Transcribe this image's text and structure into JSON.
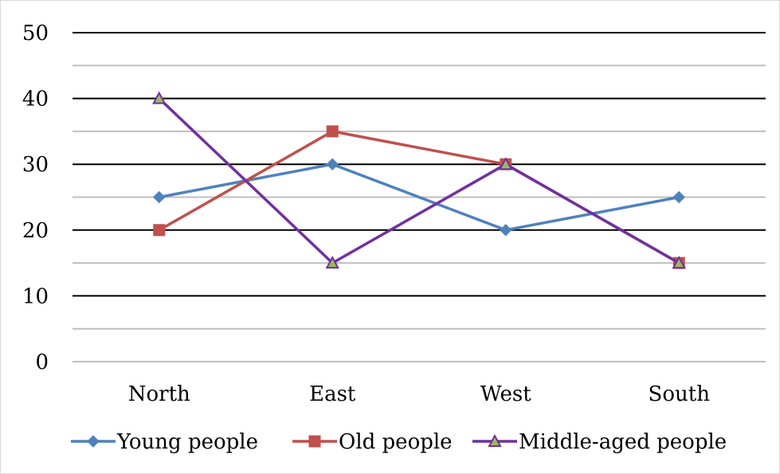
{
  "chart_data": {
    "type": "line",
    "title": "",
    "xlabel": "",
    "ylabel": "",
    "categories": [
      "North",
      "East",
      "West",
      "South"
    ],
    "ylim": [
      0,
      50
    ],
    "major_ticks": [
      0,
      10,
      20,
      30,
      40,
      50
    ],
    "minor_gridlines": [
      5,
      15,
      25,
      35,
      45
    ],
    "grid": true,
    "legend_position": "bottom",
    "series": [
      {
        "name": "Young people",
        "values": [
          25,
          30,
          20,
          25
        ],
        "color": "#4f81bd",
        "marker": "diamond"
      },
      {
        "name": "Old people",
        "values": [
          20,
          35,
          30,
          15
        ],
        "color": "#c0504d",
        "marker": "square"
      },
      {
        "name": "Middle-aged people",
        "values": [
          40,
          15,
          30,
          15
        ],
        "color": "#7030a0",
        "marker": "triangle",
        "marker_fill": "#9bbb59"
      }
    ]
  }
}
